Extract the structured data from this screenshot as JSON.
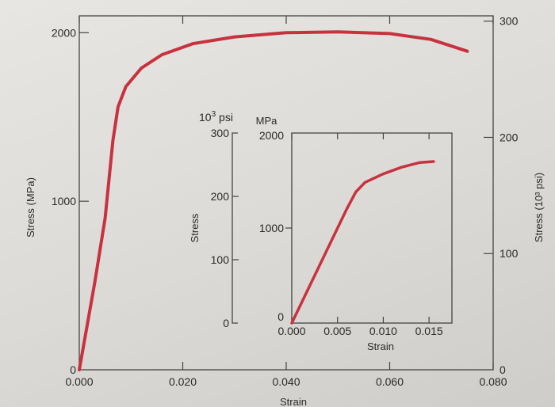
{
  "chart_data": [
    {
      "type": "line",
      "x_range": [
        0,
        0.08
      ],
      "y_range": [
        0,
        2100
      ],
      "xlabel": "Strain",
      "ylabel": "Stress (MPa)",
      "right_ylabel": "Stress (10³ psi)",
      "x_ticks": [
        "0.000",
        "0.020",
        "0.040",
        "0.060",
        "0.080"
      ],
      "y_ticks": [
        "0",
        "1000",
        "2000"
      ],
      "right_y_ticks": [
        "0",
        "100",
        "200",
        "300"
      ],
      "grid": false,
      "series": [
        {
          "color": "#c8323e",
          "points": [
            [
              0.0,
              0
            ],
            [
              0.003,
              520
            ],
            [
              0.005,
              900
            ],
            [
              0.0065,
              1360
            ],
            [
              0.0075,
              1560
            ],
            [
              0.009,
              1680
            ],
            [
              0.012,
              1790
            ],
            [
              0.016,
              1870
            ],
            [
              0.022,
              1935
            ],
            [
              0.03,
              1975
            ],
            [
              0.04,
              2000
            ],
            [
              0.05,
              2005
            ],
            [
              0.06,
              1995
            ],
            [
              0.068,
              1960
            ],
            [
              0.075,
              1890
            ]
          ]
        }
      ]
    },
    {
      "type": "line",
      "x_range": [
        0,
        0.0175
      ],
      "y_range": [
        0,
        2000
      ],
      "xlabel": "Strain",
      "ylabel": "Stress",
      "left_unit": "10³ psi",
      "right_unit": "MPa",
      "x_ticks": [
        "0.000",
        "0.005",
        "0.010",
        "0.015"
      ],
      "psi_ticks": [
        "0",
        "100",
        "200",
        "300"
      ],
      "mpa_ticks": [
        "0",
        "1000",
        "2000"
      ],
      "grid": false,
      "series": [
        {
          "color": "#c8323e",
          "points": [
            [
              0.0,
              0
            ],
            [
              0.002,
              400
            ],
            [
              0.004,
              800
            ],
            [
              0.006,
              1200
            ],
            [
              0.007,
              1380
            ],
            [
              0.008,
              1480
            ],
            [
              0.01,
              1570
            ],
            [
              0.012,
              1640
            ],
            [
              0.014,
              1690
            ],
            [
              0.0155,
              1700
            ]
          ]
        }
      ]
    }
  ]
}
